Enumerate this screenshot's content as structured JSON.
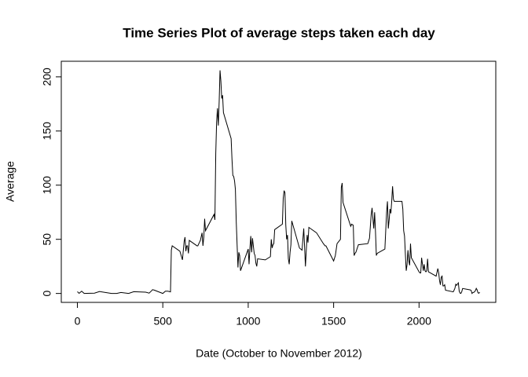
{
  "chart_data": {
    "type": "line",
    "title": "Time Series Plot of average steps taken each day",
    "xlabel": "Date (October to November 2012)",
    "ylabel": "Average",
    "x": [
      0,
      10,
      25,
      40,
      55,
      100,
      130,
      200,
      230,
      255,
      300,
      330,
      400,
      420,
      435,
      440,
      450,
      500,
      515,
      530,
      545,
      550,
      555,
      600,
      615,
      625,
      630,
      635,
      640,
      645,
      650,
      655,
      700,
      705,
      720,
      730,
      735,
      740,
      745,
      750,
      800,
      805,
      810,
      815,
      820,
      825,
      830,
      835,
      840,
      845,
      850,
      855,
      900,
      905,
      910,
      915,
      920,
      925,
      930,
      935,
      940,
      945,
      950,
      955,
      1000,
      1005,
      1010,
      1015,
      1020,
      1025,
      1030,
      1035,
      1040,
      1045,
      1050,
      1055,
      1100,
      1130,
      1135,
      1140,
      1145,
      1150,
      1155,
      1200,
      1205,
      1210,
      1215,
      1220,
      1225,
      1230,
      1235,
      1240,
      1245,
      1250,
      1255,
      1300,
      1315,
      1325,
      1330,
      1335,
      1340,
      1345,
      1350,
      1355,
      1400,
      1440,
      1450,
      1455,
      1500,
      1510,
      1520,
      1530,
      1540,
      1545,
      1550,
      1555,
      1600,
      1605,
      1615,
      1620,
      1625,
      1630,
      1645,
      1700,
      1710,
      1720,
      1725,
      1730,
      1735,
      1740,
      1745,
      1750,
      1755,
      1800,
      1805,
      1810,
      1815,
      1820,
      1825,
      1830,
      1835,
      1840,
      1845,
      1850,
      1855,
      1900,
      1905,
      1910,
      1915,
      1920,
      1925,
      1930,
      1935,
      1940,
      1945,
      1950,
      1955,
      2000,
      2005,
      2010,
      2015,
      2020,
      2025,
      2030,
      2035,
      2040,
      2045,
      2050,
      2055,
      2100,
      2110,
      2115,
      2120,
      2125,
      2130,
      2135,
      2140,
      2145,
      2150,
      2155,
      2200,
      2205,
      2210,
      2215,
      2220,
      2225,
      2230,
      2235,
      2240,
      2245,
      2250,
      2255,
      2300,
      2305,
      2310,
      2315,
      2320,
      2325,
      2330,
      2335,
      2340,
      2345,
      2350,
      2355
    ],
    "series": [
      {
        "color": "#000000",
        "values": [
          1.7,
          0.1,
          2.1,
          0,
          0.1,
          0.3,
          1.8,
          0,
          0,
          0.9,
          0,
          1.6,
          1.2,
          0.3,
          2.6,
          3.5,
          3.1,
          0,
          2.1,
          2.1,
          1.5,
          40,
          44,
          39,
          31,
          48,
          52,
          39,
          44,
          44,
          37,
          49,
          44,
          44,
          49,
          56,
          44,
          52,
          69,
          58,
          73,
          68,
          129,
          158,
          171,
          155,
          177,
          206,
          196,
          180,
          183,
          167,
          143,
          124,
          109,
          108,
          104,
          96,
          66,
          45,
          24,
          38,
          35,
          21,
          41,
          27,
          42,
          53,
          38,
          51,
          44,
          37,
          35,
          28,
          25,
          32,
          31,
          34,
          50,
          42,
          45,
          46,
          59,
          64,
          88,
          95,
          93,
          63,
          50,
          54,
          32,
          27,
          38,
          45,
          67,
          42,
          40,
          60,
          43,
          25,
          40,
          54,
          47,
          61,
          56,
          46,
          44,
          44,
          30,
          35,
          46,
          48,
          50,
          98,
          102,
          84,
          62,
          64,
          63,
          35,
          37,
          38,
          45,
          46,
          51,
          73,
          79,
          69,
          60,
          75,
          57,
          35,
          37,
          41,
          58,
          75,
          85,
          60,
          68,
          78,
          74,
          85,
          99,
          87,
          85,
          85,
          78,
          58,
          53,
          36,
          21,
          27,
          40,
          30,
          26,
          46,
          33,
          20,
          19,
          19,
          33,
          27,
          21,
          27,
          21,
          20,
          21,
          32,
          20,
          16,
          23,
          19,
          12,
          8,
          15,
          16,
          7,
          7,
          8,
          3,
          1.5,
          3,
          4.8,
          8.5,
          7.5,
          8.7,
          9.8,
          2.2,
          0.3,
          0.1,
          1.6,
          4.6,
          3.3,
          2.8,
          0,
          0.8,
          1,
          1.6,
          2.6,
          4.7,
          3.3,
          0.6,
          0.2,
          1.1
        ]
      }
    ],
    "xlim": [
      -94.2,
      2449.2
    ],
    "ylim": [
      -8.24,
      214.4
    ],
    "xticks": [
      0,
      500,
      1000,
      1500,
      2000
    ],
    "yticks": [
      0,
      50,
      100,
      150,
      200
    ]
  }
}
